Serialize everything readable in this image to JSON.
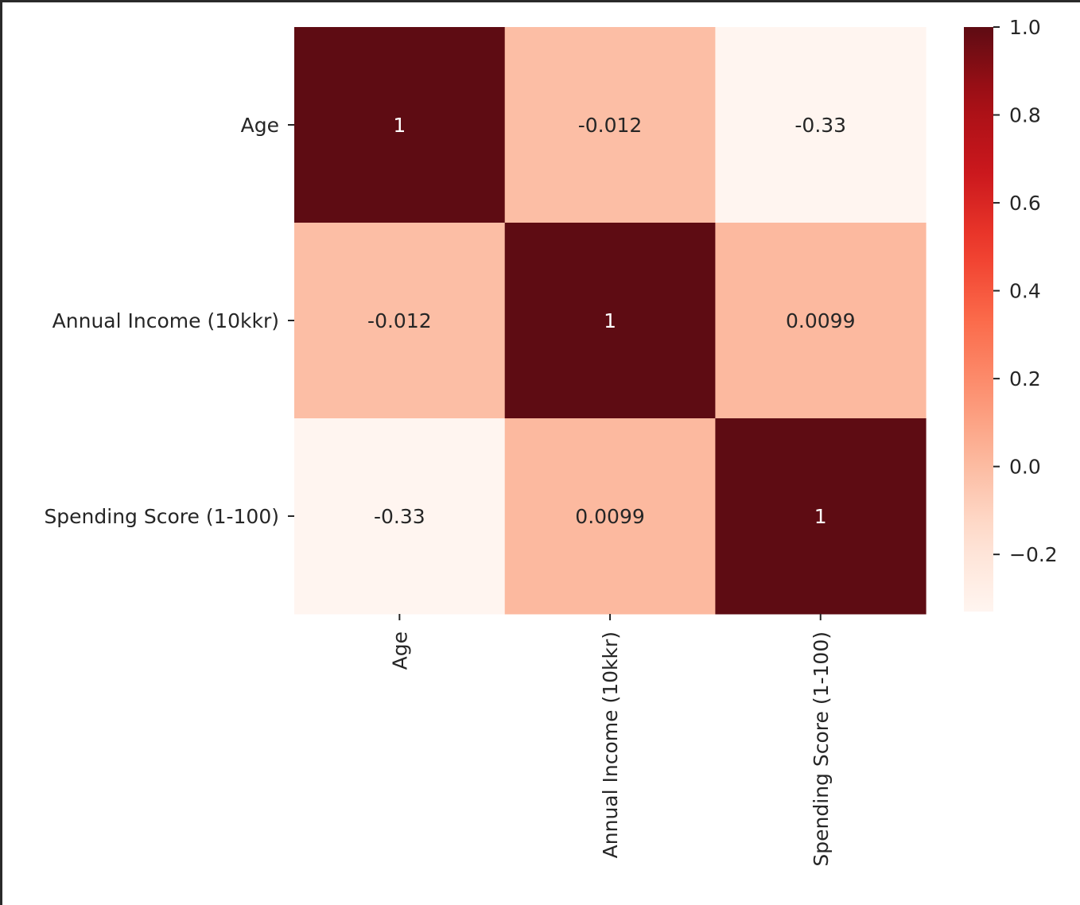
{
  "chart_data": {
    "type": "heatmap",
    "title": "",
    "xlabel": "",
    "ylabel": "",
    "x_categories": [
      "Age",
      "Annual Income (10kkr)",
      "Spending Score (1-100)"
    ],
    "y_categories": [
      "Age",
      "Annual Income (10kkr)",
      "Spending Score (1-100)"
    ],
    "values": [
      [
        1,
        -0.012,
        -0.33
      ],
      [
        -0.012,
        1,
        0.0099
      ],
      [
        -0.33,
        0.0099,
        1
      ]
    ],
    "annotations": [
      [
        "1",
        "-0.012",
        "-0.33"
      ],
      [
        "-0.012",
        "1",
        "0.0099"
      ],
      [
        "-0.33",
        "0.0099",
        "1"
      ]
    ],
    "colormap": "Reds",
    "colorbar": {
      "vmin": -0.33,
      "vmax": 1.0,
      "ticks": [
        1.0,
        0.8,
        0.6,
        0.4,
        0.2,
        0.0,
        -0.2
      ],
      "tick_labels": [
        "1.0",
        "0.8",
        "0.6",
        "0.4",
        "0.2",
        "0.0",
        "−0.2"
      ]
    },
    "colors": {
      "dark_cell": "#5e0c13",
      "light_cell": "#fdf2ef",
      "annotation_dark_text": "#262626",
      "annotation_light_text": "#ffffff"
    }
  }
}
